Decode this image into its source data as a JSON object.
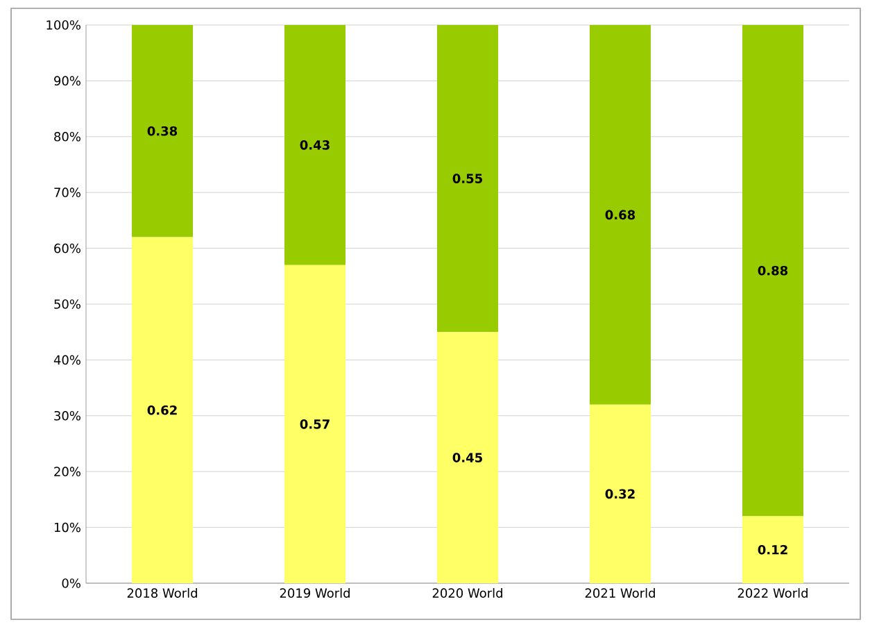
{
  "chart_data": {
    "type": "bar",
    "stacked": true,
    "categories": [
      "2018 World",
      "2019 World",
      "2020 World",
      "2021 World",
      "2022 World"
    ],
    "series": [
      {
        "color": "#ffff66",
        "values": [
          0.62,
          0.57,
          0.45,
          0.32,
          0.12
        ]
      },
      {
        "color": "#99cc00",
        "values": [
          0.38,
          0.43,
          0.55,
          0.68,
          0.88
        ]
      }
    ],
    "data_labels": true,
    "ylim": [
      0,
      1
    ],
    "yticks": [
      {
        "value": 0,
        "label": "0%"
      },
      {
        "value": 0.1,
        "label": "10%"
      },
      {
        "value": 0.2,
        "label": "20%"
      },
      {
        "value": 0.3,
        "label": "30%"
      },
      {
        "value": 0.4,
        "label": "40%"
      },
      {
        "value": 0.5,
        "label": "50%"
      },
      {
        "value": 0.6,
        "label": "60%"
      },
      {
        "value": 0.7,
        "label": "70%"
      },
      {
        "value": 0.8,
        "label": "80%"
      },
      {
        "value": 0.9,
        "label": "90%"
      },
      {
        "value": 1,
        "label": "100%"
      }
    ],
    "grid": "y"
  }
}
